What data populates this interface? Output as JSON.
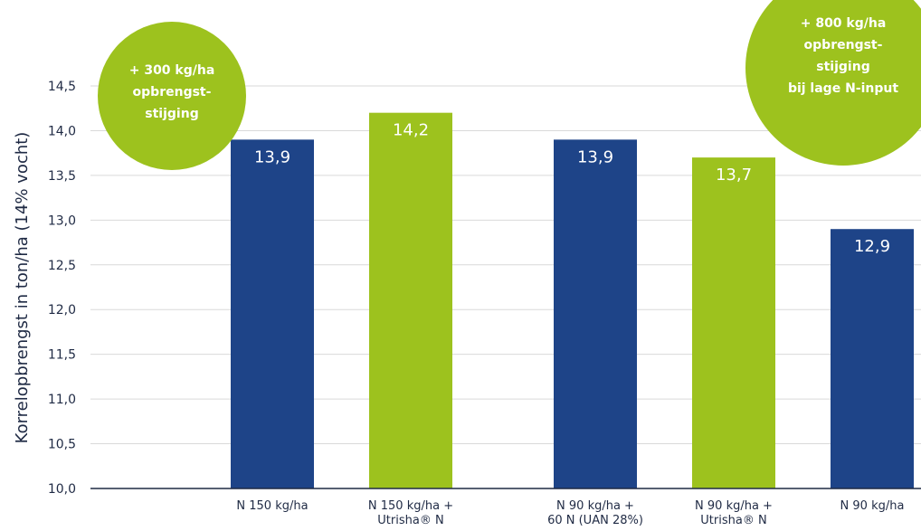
{
  "chart_data": {
    "type": "bar",
    "categories": [
      [
        "N 150 kg/ha"
      ],
      [
        "N 150 kg/ha +",
        "Utrisha® N"
      ],
      [
        "N 90 kg/ha +",
        "60 N (UAN 28%)"
      ],
      [
        "N 90 kg/ha +",
        "Utrisha® N"
      ],
      [
        "N 90 kg/ha"
      ]
    ],
    "values": [
      13.9,
      14.2,
      13.9,
      13.7,
      12.9
    ],
    "value_labels": [
      "13,9",
      "14,2",
      "13,9",
      "13,7",
      "12,9"
    ],
    "bar_colors": [
      "#1e4488",
      "#9dc21e",
      "#1e4488",
      "#9dc21e",
      "#1e4488"
    ],
    "ylabel": "Korrelopbrengst in ton/ha (14% vocht)",
    "ylim": [
      10.0,
      14.5
    ],
    "yticks": [
      10.0,
      10.5,
      11.0,
      11.5,
      12.0,
      12.5,
      13.0,
      13.5,
      14.0,
      14.5
    ],
    "ytick_labels": [
      "10,0",
      "10,5",
      "11,0",
      "11,5",
      "12,0",
      "12,5",
      "13,0",
      "13,5",
      "14,0",
      "14,5"
    ],
    "grid": true,
    "annotations": [
      {
        "lines": [
          "+ 300 kg/ha",
          "opbrengst-",
          "stijging"
        ]
      },
      {
        "lines": [
          "+ 800 kg/ha",
          "opbrengst-",
          "stijging",
          "bij lage N-input"
        ]
      }
    ]
  },
  "colors": {
    "blue": "#1e4488",
    "green": "#9dc21e",
    "grid": "#d9d9d9",
    "text": "#1f2a44"
  }
}
